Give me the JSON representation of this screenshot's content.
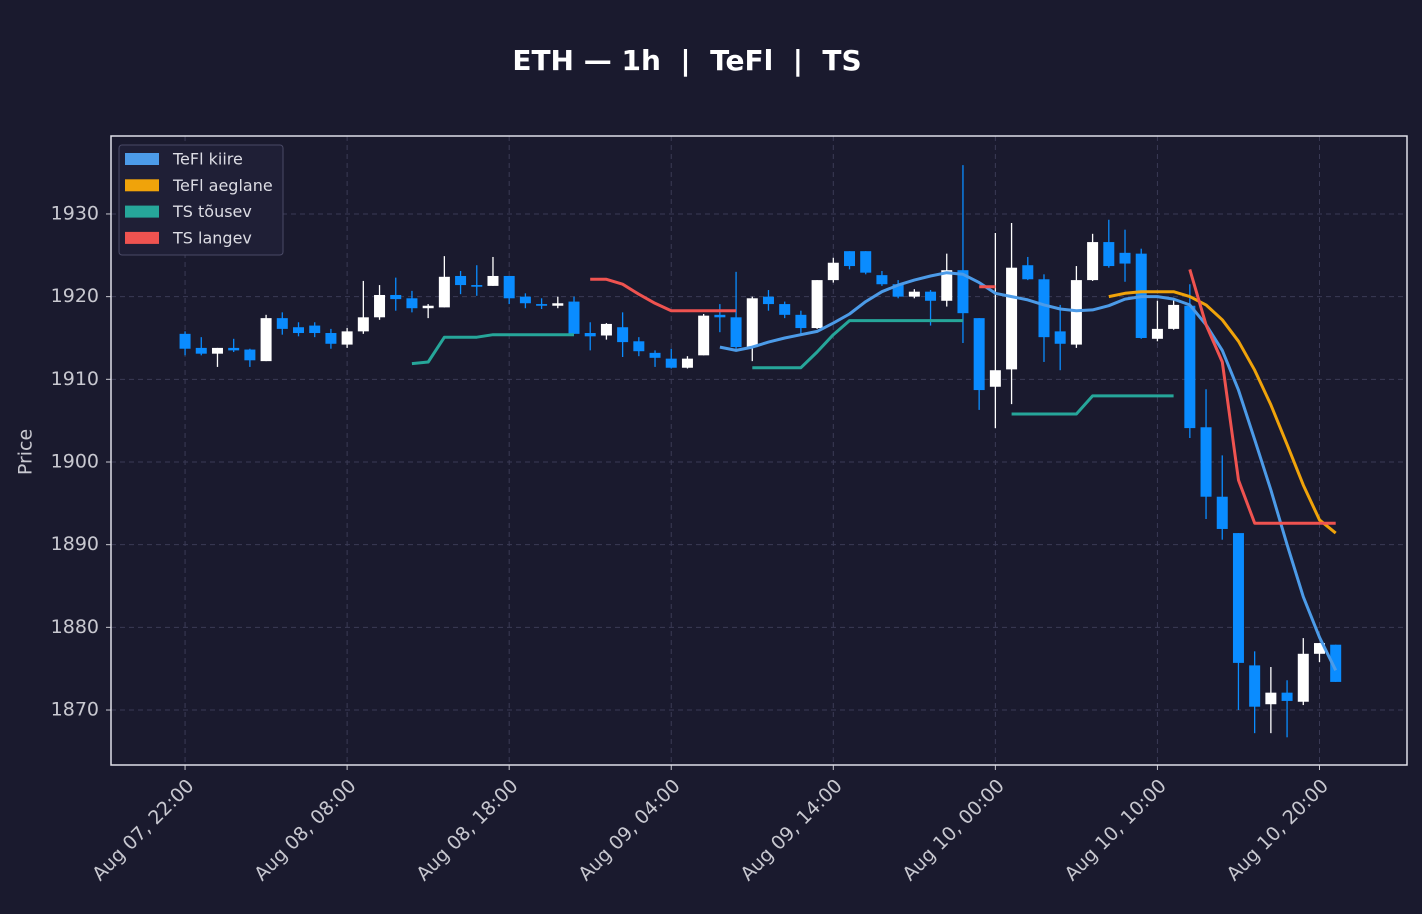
{
  "chart_data": {
    "type": "candlestick",
    "title": "ETH — 1h  |  TeFl  |  TS",
    "y_label": "Price",
    "x": [
      "Aug 07, 22:00",
      "Aug 07, 23:00",
      "Aug 08, 00:00",
      "Aug 08, 01:00",
      "Aug 08, 02:00",
      "Aug 08, 03:00",
      "Aug 08, 04:00",
      "Aug 08, 05:00",
      "Aug 08, 06:00",
      "Aug 08, 07:00",
      "Aug 08, 08:00",
      "Aug 08, 09:00",
      "Aug 08, 10:00",
      "Aug 08, 11:00",
      "Aug 08, 12:00",
      "Aug 08, 13:00",
      "Aug 08, 14:00",
      "Aug 08, 15:00",
      "Aug 08, 16:00",
      "Aug 08, 17:00",
      "Aug 08, 18:00",
      "Aug 08, 19:00",
      "Aug 08, 20:00",
      "Aug 08, 21:00",
      "Aug 08, 22:00",
      "Aug 08, 23:00",
      "Aug 09, 00:00",
      "Aug 09, 01:00",
      "Aug 09, 02:00",
      "Aug 09, 03:00",
      "Aug 09, 04:00",
      "Aug 09, 05:00",
      "Aug 09, 06:00",
      "Aug 09, 07:00",
      "Aug 09, 08:00",
      "Aug 09, 09:00",
      "Aug 09, 10:00",
      "Aug 09, 11:00",
      "Aug 09, 12:00",
      "Aug 09, 13:00",
      "Aug 09, 14:00",
      "Aug 09, 15:00",
      "Aug 09, 16:00",
      "Aug 09, 17:00",
      "Aug 09, 18:00",
      "Aug 09, 19:00",
      "Aug 09, 20:00",
      "Aug 09, 21:00",
      "Aug 09, 22:00",
      "Aug 09, 23:00",
      "Aug 10, 00:00",
      "Aug 10, 01:00",
      "Aug 10, 02:00",
      "Aug 10, 03:00",
      "Aug 10, 04:00",
      "Aug 10, 05:00",
      "Aug 10, 06:00",
      "Aug 10, 07:00",
      "Aug 10, 08:00",
      "Aug 10, 09:00",
      "Aug 10, 10:00",
      "Aug 10, 11:00",
      "Aug 10, 12:00",
      "Aug 10, 13:00",
      "Aug 10, 14:00",
      "Aug 10, 15:00",
      "Aug 10, 16:00",
      "Aug 10, 17:00",
      "Aug 10, 18:00",
      "Aug 10, 19:00",
      "Aug 10, 20:00",
      "Aug 10, 21:00"
    ],
    "open": [
      1915.5,
      1913.8,
      1913.1,
      1913.8,
      1913.6,
      1912.2,
      1917.4,
      1916.3,
      1916.5,
      1915.6,
      1914.2,
      1915.8,
      1917.5,
      1920.2,
      1919.8,
      1918.6,
      1918.7,
      1922.5,
      1921.4,
      1921.3,
      1922.5,
      1920.0,
      1919.1,
      1918.9,
      1919.4,
      1915.6,
      1915.3,
      1916.3,
      1914.6,
      1913.2,
      1912.5,
      1911.4,
      1912.9,
      1917.8,
      1917.5,
      1913.9,
      1920.0,
      1919.1,
      1917.8,
      1916.2,
      1922.0,
      1925.5,
      1925.5,
      1922.6,
      1921.5,
      1920.0,
      1920.6,
      1919.5,
      1923.2,
      1917.4,
      1909.1,
      1911.2,
      1923.8,
      1922.1,
      1915.8,
      1914.2,
      1922.0,
      1926.6,
      1925.3,
      1925.2,
      1914.9,
      1916.1,
      1918.9,
      1904.2,
      1895.8,
      1891.4,
      1875.4,
      1870.7,
      1872.1,
      1871.0,
      1876.8,
      1877.9
    ],
    "high": [
      1915.8,
      1915.1,
      1913.8,
      1914.9,
      1913.7,
      1917.8,
      1918.1,
      1916.9,
      1916.9,
      1916.1,
      1916.2,
      1921.9,
      1921.4,
      1922.3,
      1920.7,
      1919.1,
      1924.9,
      1923.1,
      1923.8,
      1924.8,
      1922.5,
      1920.4,
      1919.8,
      1920.0,
      1920.0,
      1916.9,
      1916.8,
      1918.1,
      1915.1,
      1913.5,
      1913.7,
      1912.8,
      1917.9,
      1919.1,
      1923.0,
      1920.0,
      1920.8,
      1919.4,
      1918.3,
      1922.0,
      1924.7,
      1925.5,
      1925.5,
      1923.1,
      1922.0,
      1920.9,
      1920.8,
      1925.2,
      1935.9,
      1917.4,
      1927.7,
      1928.9,
      1924.8,
      1922.7,
      1919.0,
      1923.7,
      1927.6,
      1929.3,
      1928.1,
      1925.8,
      1919.5,
      1919.7,
      1921.5,
      1908.8,
      1900.8,
      1891.4,
      1877.1,
      1875.2,
      1873.6,
      1878.7,
      1878.1,
      1877.9
    ],
    "low": [
      1912.9,
      1912.9,
      1911.5,
      1913.3,
      1911.5,
      1912.2,
      1915.4,
      1915.2,
      1915.1,
      1913.7,
      1913.8,
      1915.5,
      1917.2,
      1918.3,
      1918.1,
      1917.4,
      1918.7,
      1920.3,
      1920.1,
      1921.3,
      1919.1,
      1918.6,
      1918.5,
      1918.6,
      1915.5,
      1913.5,
      1914.8,
      1912.7,
      1912.8,
      1911.5,
      1911.3,
      1911.3,
      1912.9,
      1915.7,
      1913.5,
      1912.2,
      1918.3,
      1917.4,
      1915.4,
      1916.1,
      1921.7,
      1923.3,
      1922.7,
      1921.3,
      1919.8,
      1919.8,
      1916.5,
      1918.8,
      1914.4,
      1906.3,
      1904.1,
      1907.0,
      1922.0,
      1912.1,
      1911.1,
      1913.8,
      1921.9,
      1923.5,
      1921.8,
      1914.9,
      1914.6,
      1916.0,
      1902.9,
      1893.1,
      1890.6,
      1870.0,
      1867.2,
      1867.2,
      1866.7,
      1870.6,
      1875.8,
      1873.4
    ],
    "close": [
      1913.7,
      1913.1,
      1913.8,
      1913.5,
      1912.3,
      1917.4,
      1916.1,
      1915.6,
      1915.6,
      1914.3,
      1915.8,
      1917.5,
      1920.2,
      1919.7,
      1918.6,
      1918.9,
      1922.4,
      1921.4,
      1921.2,
      1922.5,
      1919.8,
      1919.2,
      1918.9,
      1919.2,
      1915.5,
      1915.2,
      1916.7,
      1914.5,
      1913.4,
      1912.6,
      1911.4,
      1912.5,
      1917.7,
      1917.5,
      1913.9,
      1919.8,
      1919.1,
      1917.8,
      1916.2,
      1922.0,
      1924.1,
      1923.7,
      1922.9,
      1921.5,
      1920.0,
      1920.6,
      1919.5,
      1923.2,
      1918.0,
      1908.7,
      1911.1,
      1923.5,
      1922.1,
      1915.1,
      1914.3,
      1922.0,
      1926.6,
      1923.7,
      1924.0,
      1915.0,
      1916.1,
      1919.0,
      1904.1,
      1895.8,
      1891.9,
      1875.7,
      1870.4,
      1872.1,
      1871.1,
      1876.8,
      1878.1,
      1873.4
    ],
    "up_color": "#ffffff",
    "down_color": "#0a8cff",
    "series": [
      {
        "name": "TeFl kiire",
        "color": "#4c9be8",
        "values": [
          null,
          null,
          null,
          null,
          null,
          null,
          null,
          null,
          null,
          null,
          null,
          null,
          null,
          null,
          null,
          null,
          null,
          null,
          null,
          null,
          null,
          null,
          null,
          null,
          null,
          null,
          null,
          null,
          null,
          null,
          null,
          null,
          null,
          1913.9,
          1913.5,
          1913.9,
          1914.5,
          1915.0,
          1915.4,
          1915.8,
          1916.8,
          1917.9,
          1919.4,
          1920.6,
          1921.4,
          1922.0,
          1922.5,
          1922.9,
          1922.7,
          1921.7,
          1920.4,
          1920.0,
          1919.6,
          1919.0,
          1918.5,
          1918.3,
          1918.4,
          1918.9,
          1919.7,
          1920.0,
          1920.0,
          1919.7,
          1919.0,
          1916.6,
          1913.5,
          1908.7,
          1902.7,
          1896.6,
          1890.0,
          1883.7,
          1878.8,
          1874.8
        ]
      },
      {
        "name": "TeFl aeglane",
        "color": "#f0a30a",
        "values": [
          null,
          null,
          null,
          null,
          null,
          null,
          null,
          null,
          null,
          null,
          null,
          null,
          null,
          null,
          null,
          null,
          null,
          null,
          null,
          null,
          null,
          null,
          null,
          null,
          null,
          null,
          null,
          null,
          null,
          null,
          null,
          null,
          null,
          null,
          null,
          null,
          null,
          null,
          null,
          null,
          null,
          null,
          null,
          null,
          null,
          null,
          null,
          null,
          null,
          null,
          null,
          null,
          null,
          null,
          null,
          null,
          null,
          1920.0,
          1920.4,
          1920.6,
          1920.6,
          1920.6,
          1920.0,
          1919.0,
          1917.2,
          1914.6,
          1911.1,
          1906.9,
          1902.1,
          1897.2,
          1893.0,
          1891.4
        ]
      },
      {
        "name": "TS tõusev",
        "color": "#26a69a",
        "values": [
          null,
          null,
          null,
          null,
          null,
          null,
          null,
          null,
          null,
          null,
          null,
          null,
          null,
          null,
          1911.9,
          1912.1,
          1915.1,
          1915.1,
          1915.1,
          1915.4,
          1915.4,
          1915.4,
          1915.4,
          1915.4,
          1915.4,
          null,
          null,
          null,
          null,
          null,
          null,
          null,
          null,
          null,
          null,
          1911.4,
          1911.4,
          1911.4,
          1911.4,
          1913.3,
          1915.4,
          1917.1,
          1917.1,
          1917.1,
          1917.1,
          1917.1,
          1917.1,
          1917.1,
          1917.1,
          null,
          null,
          1905.8,
          1905.8,
          1905.8,
          1905.8,
          1905.8,
          1908.0,
          1908.0,
          1908.0,
          1908.0,
          1908.0,
          1908.0,
          null,
          null,
          null,
          null,
          null,
          null,
          null,
          null,
          null,
          null
        ]
      },
      {
        "name": "TS langev",
        "color": "#ef5350",
        "values": [
          null,
          null,
          null,
          null,
          null,
          null,
          null,
          null,
          null,
          null,
          null,
          null,
          null,
          null,
          null,
          null,
          null,
          null,
          null,
          null,
          null,
          null,
          null,
          null,
          null,
          1922.1,
          1922.1,
          1921.5,
          1920.3,
          1919.2,
          1918.3,
          1918.3,
          1918.3,
          1918.3,
          1918.3,
          null,
          null,
          null,
          null,
          null,
          null,
          null,
          null,
          null,
          null,
          null,
          null,
          null,
          null,
          1921.2,
          1921.2,
          null,
          null,
          null,
          null,
          null,
          null,
          null,
          null,
          null,
          null,
          null,
          1923.3,
          1916.6,
          1912.1,
          1897.8,
          1892.6,
          1892.6,
          1892.6,
          1892.6,
          1892.6,
          1892.6
        ]
      }
    ],
    "ylim": [
      1863.35,
      1939.43
    ],
    "yticks": [
      1870,
      1880,
      1890,
      1900,
      1910,
      1920,
      1930
    ],
    "xticks": [
      "Aug 07, 22:00",
      "Aug 08, 08:00",
      "Aug 08, 18:00",
      "Aug 09, 04:00",
      "Aug 09, 14:00",
      "Aug 10, 00:00",
      "Aug 10, 10:00",
      "Aug 10, 20:00"
    ],
    "grid": true,
    "legend": "upper left"
  }
}
